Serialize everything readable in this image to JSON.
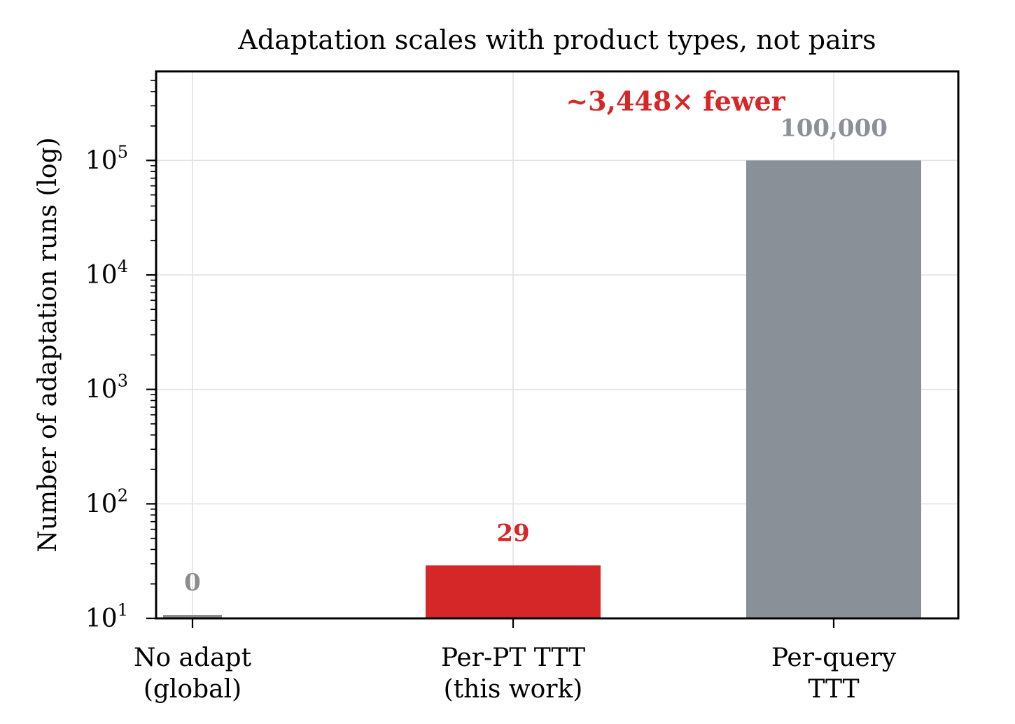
{
  "chart_data": {
    "type": "bar",
    "title": "Adaptation scales with product types, not pairs",
    "ylabel": "Number of adaptation runs (log)",
    "xlabel": "",
    "yscale": "log",
    "ylim": [
      10,
      600000
    ],
    "yticks": [
      10,
      100,
      1000,
      10000,
      100000
    ],
    "ytick_labels": [
      {
        "base": "10",
        "exp": "1"
      },
      {
        "base": "10",
        "exp": "2"
      },
      {
        "base": "10",
        "exp": "3"
      },
      {
        "base": "10",
        "exp": "4"
      },
      {
        "base": "10",
        "exp": "5"
      }
    ],
    "grid": true,
    "categories": [
      {
        "line1": "No adapt",
        "line2": "(global)"
      },
      {
        "line1": "Per-PT TTT",
        "line2": "(this work)"
      },
      {
        "line1": "Per-query",
        "line2": "TTT"
      }
    ],
    "values": [
      0,
      29,
      100000
    ],
    "value_labels": [
      "0",
      "29",
      "100,000"
    ],
    "colors": [
      "#8c8c8c",
      "#d62728",
      "#8a9097"
    ],
    "label_colors": [
      "#8c8c8c",
      "#d62728",
      "#8a9097"
    ],
    "annotation": {
      "text": "~3,448× fewer",
      "color": "#d62728"
    }
  }
}
